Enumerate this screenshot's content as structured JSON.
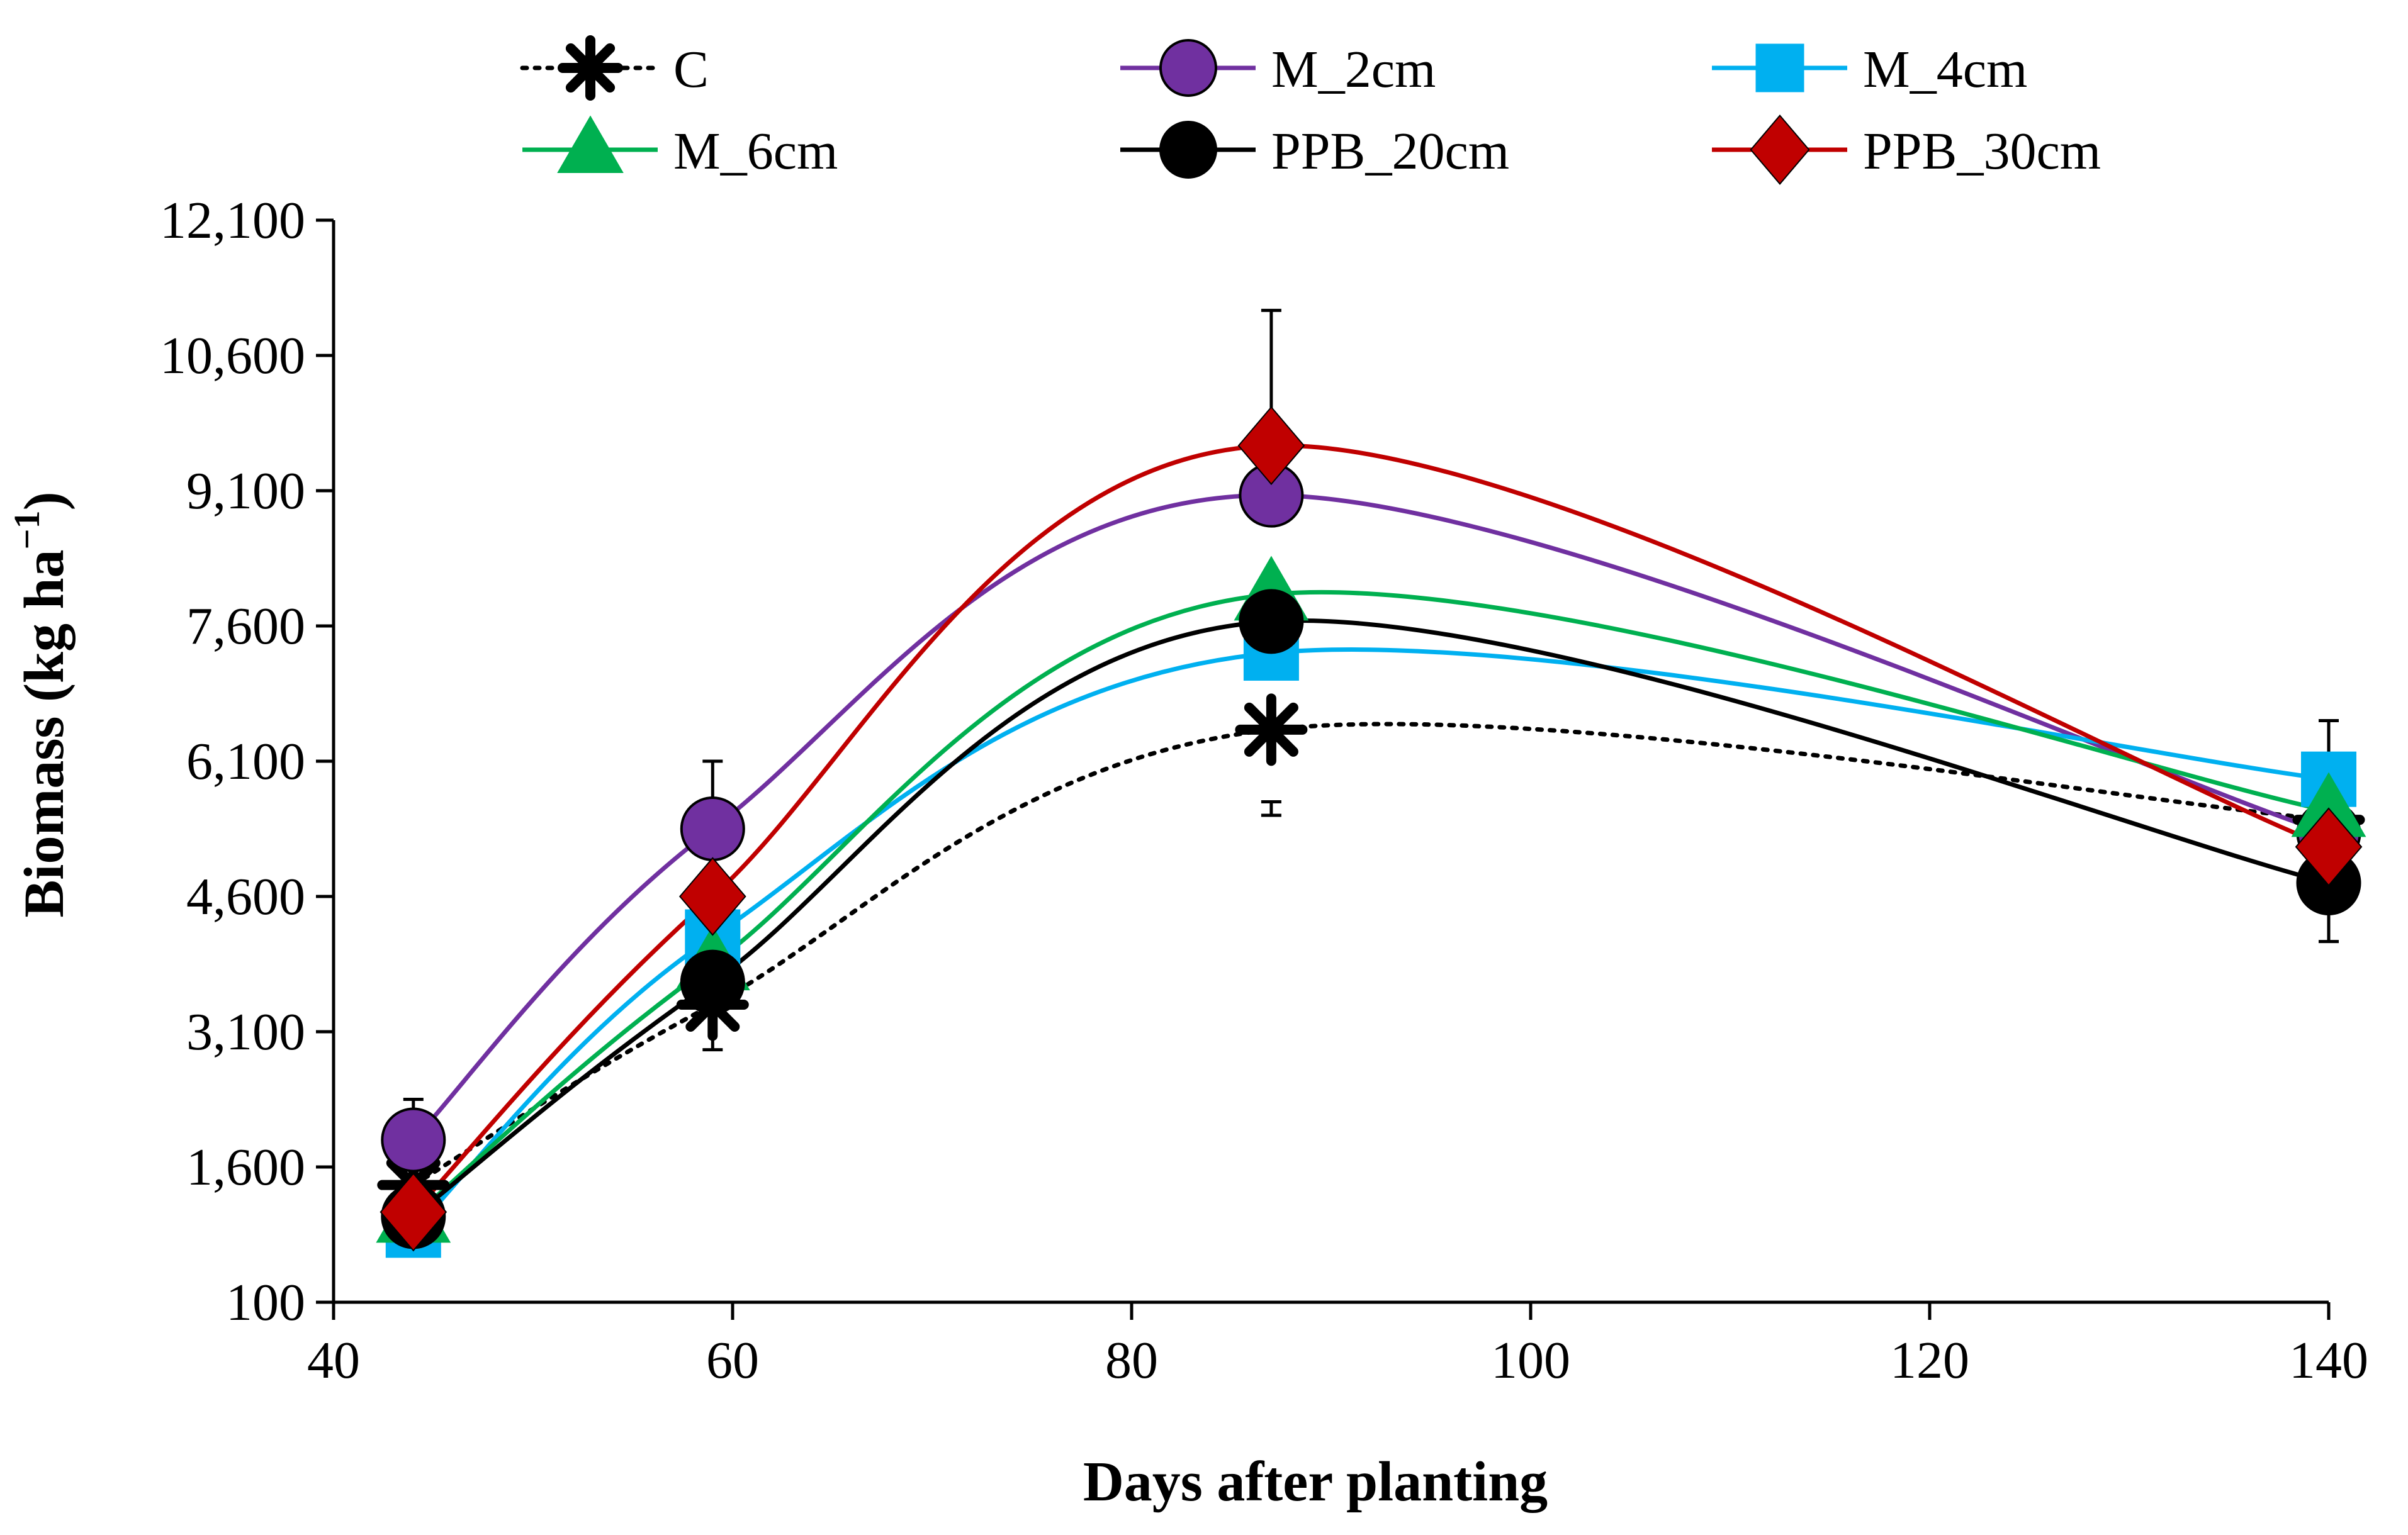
{
  "chart_data": {
    "type": "line",
    "title": "",
    "xlabel": "Days after planting",
    "ylabel": "Biomass (kg  ha",
    "ylabel_superscript": "−1",
    "ylabel_close": ")",
    "xlim": [
      40,
      140
    ],
    "ylim": [
      100,
      12100
    ],
    "x_ticks": [
      40,
      60,
      80,
      100,
      120,
      140
    ],
    "x_tick_labels": [
      "40",
      "60",
      "80",
      "100",
      "120",
      "140"
    ],
    "y_ticks": [
      100,
      1600,
      3100,
      4600,
      6100,
      7600,
      9100,
      10600,
      12100
    ],
    "y_tick_labels": [
      "100",
      "1,600",
      "3,100",
      "4,600",
      "6,100",
      "7,600",
      "9,100",
      "10,600",
      "12,100"
    ],
    "grid": false,
    "legend_position": "top",
    "x": [
      44,
      59,
      87,
      140
    ],
    "series": [
      {
        "name": "C",
        "color": "#000000",
        "marker": "asterisk",
        "line_style": "dotted",
        "values": [
          1400,
          3400,
          6450,
          5450
        ],
        "error_upper": [
          1400,
          3400,
          5650,
          5450
        ],
        "error_lower": [
          1400,
          2900,
          5500,
          5450
        ]
      },
      {
        "name": "M_2cm",
        "color": "#7030A0",
        "marker": "circle",
        "line_style": "solid",
        "values": [
          1900,
          5350,
          9050,
          5300
        ],
        "error_upper": [
          2350,
          6100,
          9050,
          5300
        ],
        "error_lower": [
          1900,
          5350,
          9050,
          5300
        ]
      },
      {
        "name": "M_4cm",
        "color": "#00B0F0",
        "marker": "square",
        "line_style": "solid",
        "values": [
          900,
          4150,
          7300,
          5900
        ],
        "error_upper": [
          900,
          4150,
          7300,
          5900
        ],
        "error_lower": [
          900,
          4150,
          7300,
          5900
        ]
      },
      {
        "name": "M_6cm",
        "color": "#00B050",
        "marker": "triangle",
        "line_style": "solid",
        "values": [
          1050,
          3850,
          7950,
          5550
        ],
        "error_upper": [
          1050,
          3850,
          7950,
          5550
        ],
        "error_lower": [
          1050,
          3850,
          7950,
          5550
        ]
      },
      {
        "name": "PPB_20cm",
        "color": "#000000",
        "marker": "circle",
        "line_style": "solid",
        "values": [
          1050,
          3650,
          7650,
          4750
        ],
        "error_upper": [
          1050,
          3650,
          7650,
          4750
        ],
        "error_lower": [
          1050,
          3650,
          7650,
          4100
        ]
      },
      {
        "name": "PPB_30cm",
        "color": "#C00000",
        "marker": "diamond",
        "line_style": "solid",
        "values": [
          1100,
          4600,
          9600,
          5150
        ],
        "error_upper": [
          1100,
          4600,
          11100,
          6550
        ],
        "error_lower": [
          1100,
          4600,
          9600,
          5150
        ]
      }
    ]
  }
}
